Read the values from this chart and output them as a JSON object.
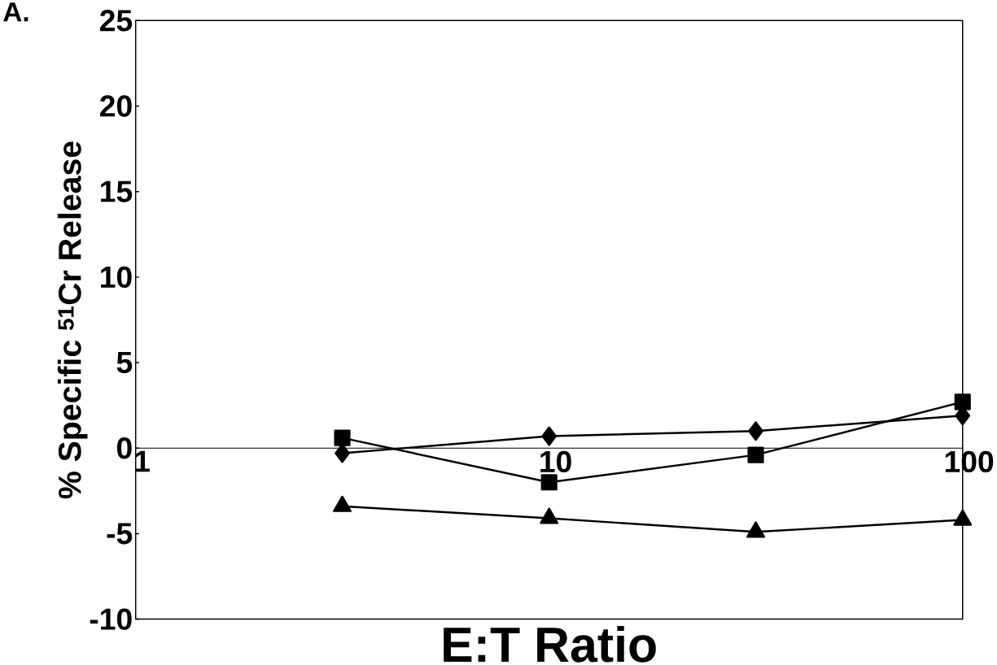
{
  "chart_data": {
    "type": "line",
    "xlabel": "E:T Ratio",
    "ylabel": "% Specific $^{51}$Cr Release",
    "annotations": [
      "A."
    ],
    "x": [
      3.16,
      10,
      31.6,
      100
    ],
    "series": [
      {
        "color": "#000000",
        "marker": "diamond",
        "values": [
          -0.3,
          0.7,
          1.0,
          1.9
        ]
      },
      {
        "color": "#000000",
        "marker": "square",
        "values": [
          0.6,
          -2.0,
          -0.4,
          2.7
        ]
      },
      {
        "color": "#000000",
        "marker": "triangle",
        "values": [
          -3.4,
          -4.1,
          -4.9,
          -4.2
        ]
      }
    ],
    "log": "x",
    "xlim": [
      1,
      100
    ],
    "xticks": [
      1,
      10,
      100
    ],
    "ylim": [
      -10,
      25
    ],
    "yticks": [
      -10,
      -5,
      0,
      5,
      10,
      15,
      20,
      25
    ],
    "grid": false,
    "line_style": "solid"
  }
}
